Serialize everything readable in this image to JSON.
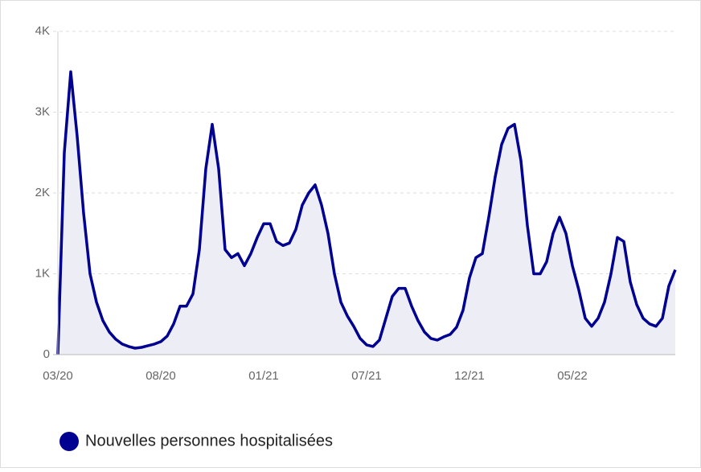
{
  "chart_data": {
    "type": "area",
    "categories": [
      "03/20",
      null,
      null,
      null,
      null,
      null,
      null,
      null,
      null,
      null,
      null,
      null,
      null,
      null,
      null,
      null,
      "08/20",
      null,
      null,
      null,
      null,
      null,
      null,
      null,
      null,
      null,
      null,
      null,
      null,
      null,
      null,
      null,
      "01/21",
      null,
      null,
      null,
      null,
      null,
      null,
      null,
      null,
      null,
      null,
      null,
      null,
      null,
      null,
      null,
      "07/21",
      null,
      null,
      null,
      null,
      null,
      null,
      null,
      null,
      null,
      null,
      null,
      null,
      null,
      null,
      null,
      "12/21",
      null,
      null,
      null,
      null,
      null,
      null,
      null,
      null,
      null,
      null,
      null,
      null,
      null,
      null,
      null,
      "05/22",
      null,
      null,
      null,
      null,
      null,
      null,
      null,
      null,
      null,
      null,
      null,
      null,
      null,
      null,
      null,
      null
    ],
    "series": [
      {
        "name": "Nouvelles personnes hospitalisées",
        "color": "#000091",
        "area_color": "#ededf5",
        "values": [
          0,
          2500,
          3500,
          2700,
          1750,
          1000,
          650,
          420,
          280,
          190,
          130,
          100,
          80,
          90,
          110,
          130,
          160,
          230,
          380,
          600,
          600,
          750,
          1300,
          2300,
          2850,
          2300,
          1300,
          1200,
          1250,
          1100,
          1250,
          1450,
          1620,
          1620,
          1400,
          1350,
          1380,
          1550,
          1850,
          2000,
          2100,
          1850,
          1500,
          1000,
          650,
          480,
          350,
          200,
          120,
          100,
          180,
          450,
          720,
          820,
          820,
          600,
          420,
          280,
          200,
          180,
          220,
          250,
          340,
          550,
          950,
          1200,
          1250,
          1700,
          2200,
          2600,
          2800,
          2850,
          2400,
          1600,
          1000,
          1000,
          1150,
          1500,
          1700,
          1500,
          1100,
          800,
          450,
          350,
          450,
          650,
          1000,
          1450,
          1400,
          900,
          620,
          450,
          380,
          350,
          450,
          850,
          1050
        ]
      }
    ],
    "ylim": [
      0,
      4000
    ],
    "yticks": [
      0,
      {
        "value": 1000,
        "label": "1K"
      },
      {
        "value": 2000,
        "label": "2K"
      },
      {
        "value": 3000,
        "label": "3K"
      },
      {
        "value": 4000,
        "label": "4K"
      }
    ],
    "grid": true
  }
}
